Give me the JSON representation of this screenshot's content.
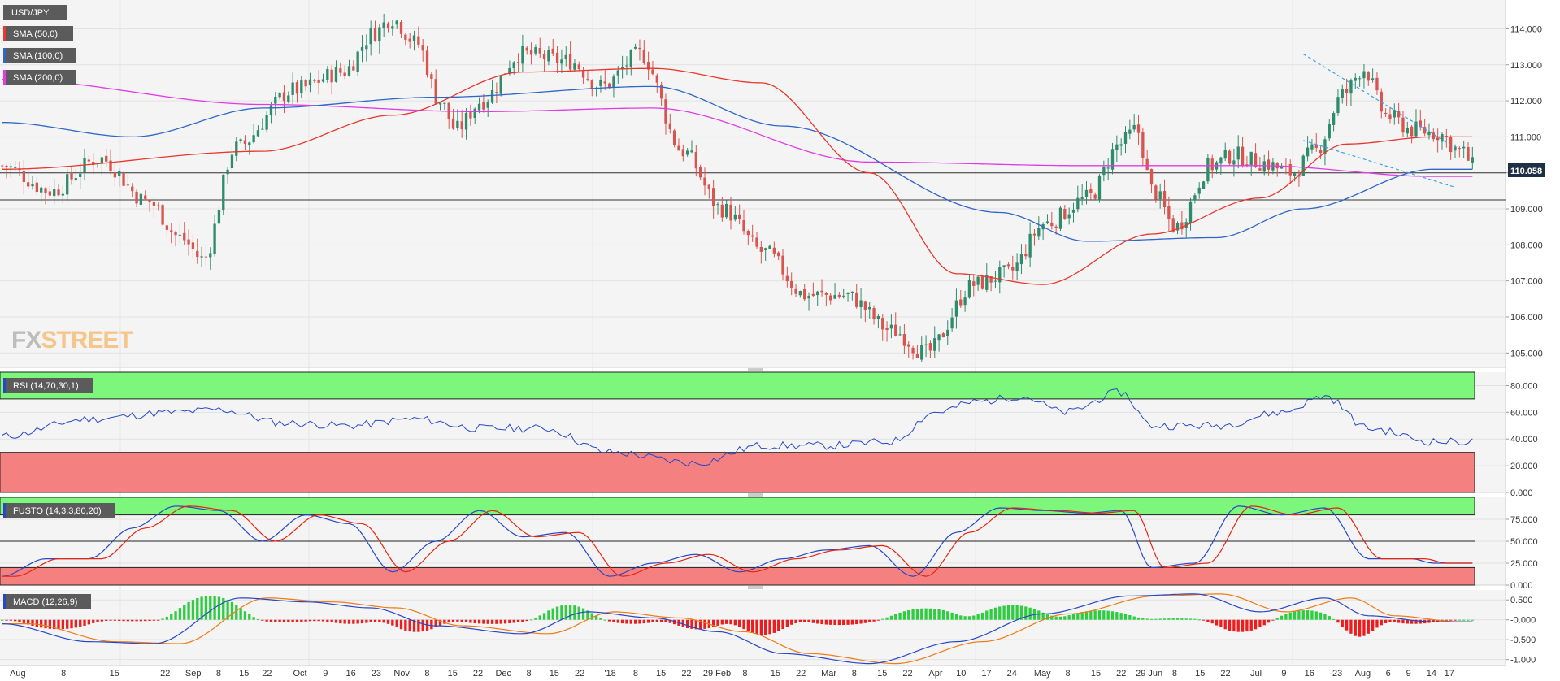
{
  "symbol": "USD/JPY",
  "watermark": {
    "fx": "FX",
    "street": "STREET"
  },
  "colors": {
    "bull": "#2e8b6b",
    "bear": "#d9534f",
    "sma50": "#e8372c",
    "sma100": "#2f67c8",
    "sma200": "#e23be6",
    "rsi_line": "#2747c8",
    "fusto_k": "#2747c8",
    "fusto_d": "#e8230f",
    "macd_line": "#2747c8",
    "macd_signal": "#f07a14",
    "hist_pos": "#2ecc40",
    "hist_neg": "#ee1c1c",
    "zone_green": "#7cf77c",
    "zone_red": "#f58080"
  },
  "indicators": {
    "sma50": "SMA (50,0)",
    "sma100": "SMA (100,0)",
    "sma200": "SMA (200,0)",
    "rsi": "RSI (14,70,30,1)",
    "fusto": "FUSTO (14,3,3,80,20)",
    "macd": "MACD (12,26,9)"
  },
  "price_label": "110.058",
  "chart_data": [
    {
      "type": "candlestick",
      "title": "USD/JPY",
      "y_ticks": [
        "114.000",
        "113.000",
        "112.000",
        "111.000",
        "110.000",
        "109.000",
        "108.000",
        "107.000",
        "106.000",
        "105.000"
      ],
      "ylim": [
        104.6,
        114.8
      ],
      "x_ticks": [
        "Aug",
        "8",
        "15",
        "22",
        "Sep",
        "8",
        "15",
        "22",
        "Oct",
        "9",
        "16",
        "23",
        "Nov",
        "8",
        "15",
        "22",
        "Dec",
        "8",
        "15",
        "22",
        "'18",
        "8",
        "15",
        "22",
        "29 Feb",
        "8",
        "15",
        "22",
        "Mar",
        "8",
        "15",
        "22",
        "Apr",
        "10",
        "17",
        "24",
        "May",
        "8",
        "15",
        "22",
        "29 Jun",
        "8",
        "15",
        "22",
        "Jul",
        "9",
        "16",
        "23",
        "Aug",
        "6",
        "9",
        "14",
        "17"
      ],
      "last_price": 110.058,
      "horizontal_lines": [
        110.0,
        109.25
      ],
      "key_points": {
        "sep_low": 107.3,
        "nov_high": 114.7,
        "jan_high": 113.4,
        "mar_low": 104.6,
        "may_high": 111.4,
        "jul_high": 113.2,
        "last": 110.06
      },
      "sma": {
        "sma50": [
          [
            0,
            110.1
          ],
          [
            60,
            110.6
          ],
          [
            90,
            111.6
          ],
          [
            120,
            112.8
          ],
          [
            150,
            112.9
          ],
          [
            175,
            112.5
          ],
          [
            200,
            110.0
          ],
          [
            220,
            107.2
          ],
          [
            240,
            106.9
          ],
          [
            265,
            108.3
          ],
          [
            290,
            109.3
          ],
          [
            310,
            110.8
          ],
          [
            330,
            111.0
          ]
        ],
        "sma100": [
          [
            0,
            111.4
          ],
          [
            30,
            111.0
          ],
          [
            60,
            111.8
          ],
          [
            100,
            112.1
          ],
          [
            150,
            112.4
          ],
          [
            180,
            111.3
          ],
          [
            230,
            108.9
          ],
          [
            250,
            108.1
          ],
          [
            280,
            108.2
          ],
          [
            300,
            109.0
          ],
          [
            330,
            110.1
          ]
        ],
        "sma200": [
          [
            0,
            112.6
          ],
          [
            60,
            111.9
          ],
          [
            110,
            111.7
          ],
          [
            150,
            111.8
          ],
          [
            200,
            110.3
          ],
          [
            250,
            110.2
          ],
          [
            290,
            110.2
          ],
          [
            330,
            109.9
          ]
        ]
      },
      "trendlines": [
        [
          [
            300,
            113.3
          ],
          [
            335,
            110.7
          ]
        ],
        [
          [
            300,
            110.9
          ],
          [
            335,
            109.6
          ]
        ]
      ]
    },
    {
      "type": "line",
      "title": "RSI (14,70,30,1)",
      "y_ticks": [
        "80.000",
        "60.000",
        "40.000",
        "20.000",
        "0.000"
      ],
      "ylim": [
        0,
        90
      ],
      "zones": {
        "overbought": 70,
        "oversold": 30
      },
      "keyframes": [
        [
          0,
          42
        ],
        [
          20,
          55
        ],
        [
          40,
          60
        ],
        [
          50,
          62
        ],
        [
          65,
          52
        ],
        [
          80,
          50
        ],
        [
          95,
          55
        ],
        [
          110,
          48
        ],
        [
          125,
          48
        ],
        [
          140,
          30
        ],
        [
          160,
          22
        ],
        [
          175,
          35
        ],
        [
          190,
          35
        ],
        [
          205,
          38
        ],
        [
          215,
          60
        ],
        [
          225,
          68
        ],
        [
          235,
          72
        ],
        [
          245,
          60
        ],
        [
          258,
          75
        ],
        [
          265,
          50
        ],
        [
          280,
          50
        ],
        [
          295,
          60
        ],
        [
          305,
          72
        ],
        [
          315,
          48
        ],
        [
          330,
          38
        ]
      ]
    },
    {
      "type": "line",
      "title": "FUSTO (14,3,3,80,20)",
      "y_ticks": [
        "75.000",
        "50.000",
        "25.000",
        "0.000"
      ],
      "ylim": [
        0,
        100
      ],
      "zones": {
        "overbought": 80,
        "oversold": 20
      },
      "keyframes": [
        [
          0,
          10
        ],
        [
          10,
          30
        ],
        [
          20,
          30
        ],
        [
          30,
          65
        ],
        [
          40,
          90
        ],
        [
          50,
          85
        ],
        [
          60,
          50
        ],
        [
          70,
          80
        ],
        [
          80,
          70
        ],
        [
          90,
          15
        ],
        [
          100,
          50
        ],
        [
          110,
          85
        ],
        [
          120,
          55
        ],
        [
          130,
          60
        ],
        [
          140,
          10
        ],
        [
          150,
          25
        ],
        [
          160,
          35
        ],
        [
          170,
          15
        ],
        [
          180,
          30
        ],
        [
          190,
          40
        ],
        [
          200,
          45
        ],
        [
          210,
          10
        ],
        [
          220,
          60
        ],
        [
          230,
          88
        ],
        [
          240,
          85
        ],
        [
          250,
          82
        ],
        [
          258,
          85
        ],
        [
          265,
          20
        ],
        [
          275,
          25
        ],
        [
          285,
          90
        ],
        [
          295,
          80
        ],
        [
          305,
          88
        ],
        [
          315,
          30
        ],
        [
          325,
          30
        ],
        [
          330,
          25
        ]
      ]
    },
    {
      "type": "line",
      "title": "MACD (12,26,9)",
      "y_ticks": [
        "0.500",
        "-0.000",
        "-0.500",
        "-1.000"
      ],
      "ylim": [
        -1.15,
        0.75
      ],
      "keyframes": [
        [
          0,
          -0.1
        ],
        [
          20,
          -0.55
        ],
        [
          35,
          -0.6
        ],
        [
          55,
          0.55
        ],
        [
          70,
          0.45
        ],
        [
          85,
          0.3
        ],
        [
          100,
          -0.15
        ],
        [
          120,
          -0.35
        ],
        [
          135,
          0.2
        ],
        [
          150,
          0.05
        ],
        [
          165,
          -0.3
        ],
        [
          180,
          -0.85
        ],
        [
          200,
          -1.1
        ],
        [
          220,
          -0.55
        ],
        [
          240,
          0.15
        ],
        [
          260,
          0.6
        ],
        [
          275,
          0.65
        ],
        [
          290,
          0.2
        ],
        [
          305,
          0.55
        ],
        [
          315,
          0.1
        ],
        [
          330,
          -0.05
        ]
      ]
    }
  ]
}
